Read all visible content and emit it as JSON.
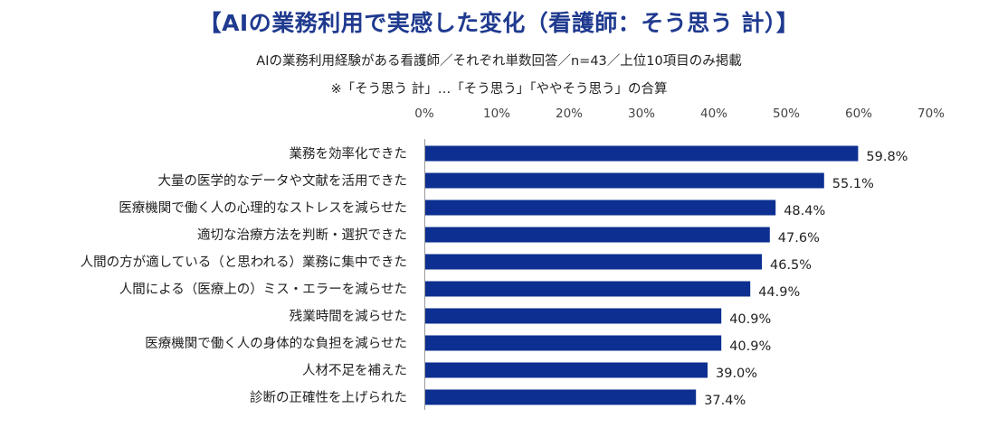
{
  "header": {
    "title": "【AIの業務利用で実感した変化（看護師：そう思う 計）】",
    "subtitle": "AIの業務利用経験がある看護師／それぞれ単数回答／n=43／上位10項目のみ掲載",
    "note": "※「そう思う 計」…「そう思う」「ややそう思う」の合算"
  },
  "colors": {
    "bar": "#0d2f91",
    "axis": "#999999"
  },
  "chart_data": {
    "type": "bar",
    "orientation": "horizontal",
    "categories": [
      "業務を効率化できた",
      "大量の医学的なデータや文献を活用できた",
      "医療機関で働く人の心理的なストレスを減らせた",
      "適切な治療方法を判断・選択できた",
      "人間の方が適している（と思われる）業務に集中できた",
      "人間による（医療上の）ミス・エラーを減らせた",
      "残業時間を減らせた",
      "医療機関で働く人の身体的な負担を減らせた",
      "人材不足を補えた",
      "診断の正確性を上げられた"
    ],
    "values": [
      59.8,
      55.1,
      48.4,
      47.6,
      46.5,
      44.9,
      40.9,
      40.9,
      39.0,
      37.4
    ],
    "value_labels": [
      "59.8%",
      "55.1%",
      "48.4%",
      "47.6%",
      "46.5%",
      "44.9%",
      "40.9%",
      "40.9%",
      "39.0%",
      "37.4%"
    ],
    "xlim": [
      0,
      70
    ],
    "tick_labels": [
      "0%",
      "10%",
      "20%",
      "30%",
      "40%",
      "50%",
      "60%",
      "70%"
    ],
    "grid": false,
    "title": "【AIの業務利用で実感した変化（看護師：そう思う 計）】",
    "xlabel": "",
    "ylabel": ""
  }
}
